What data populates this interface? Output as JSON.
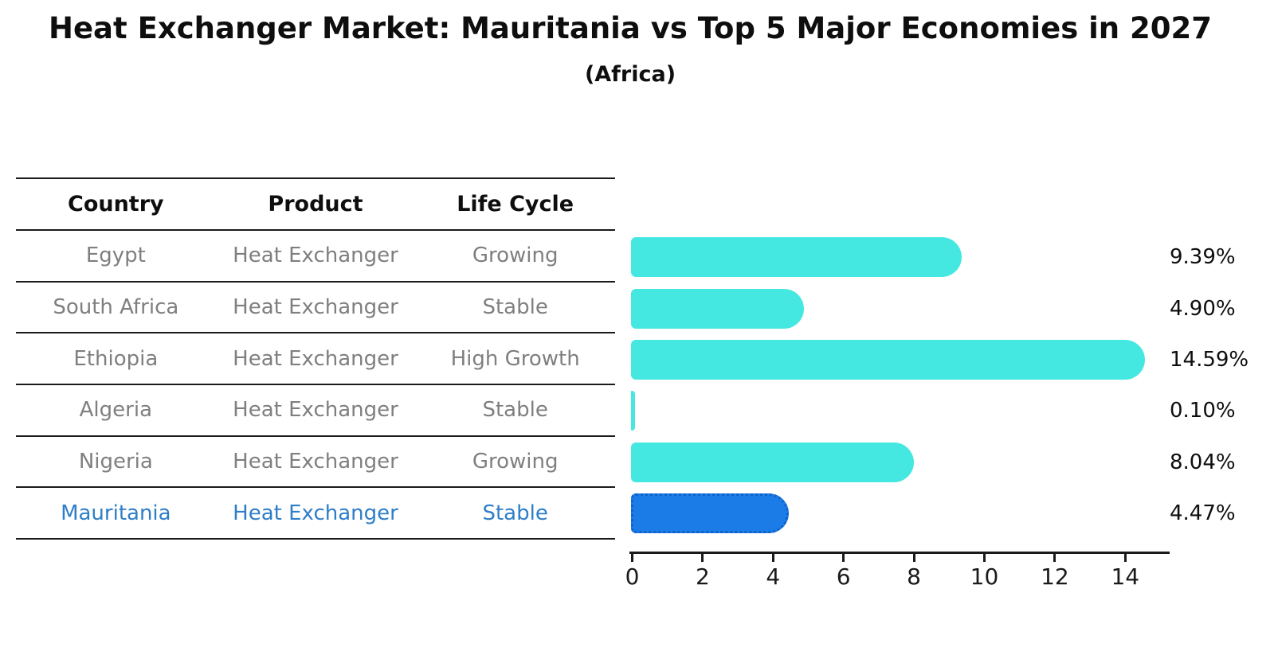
{
  "header": {
    "title": "Heat Exchanger Market: Mauritania vs Top 5 Major Economies in 2027",
    "subtitle": "(Africa)"
  },
  "table": {
    "columns": [
      "Country",
      "Product",
      "Life Cycle"
    ],
    "rows": [
      {
        "country": "Egypt",
        "product": "Heat Exchanger",
        "life_cycle": "Growing",
        "highlight": false
      },
      {
        "country": "South Africa",
        "product": "Heat Exchanger",
        "life_cycle": "Stable",
        "highlight": false
      },
      {
        "country": "Ethiopia",
        "product": "Heat Exchanger",
        "life_cycle": "High Growth",
        "highlight": false
      },
      {
        "country": "Algeria",
        "product": "Heat Exchanger",
        "life_cycle": "Stable",
        "highlight": false
      },
      {
        "country": "Nigeria",
        "product": "Heat Exchanger",
        "life_cycle": "Growing",
        "highlight": false
      },
      {
        "country": "Mauritania",
        "product": "Heat Exchanger",
        "life_cycle": "Stable",
        "highlight": true
      }
    ]
  },
  "chart_data": {
    "type": "bar",
    "orientation": "horizontal",
    "title": "Heat Exchanger Market: Mauritania vs Top 5 Major Economies in 2027",
    "subtitle": "(Africa)",
    "categories": [
      "Egypt",
      "South Africa",
      "Ethiopia",
      "Algeria",
      "Nigeria",
      "Mauritania"
    ],
    "values": [
      9.39,
      4.9,
      14.59,
      0.1,
      8.04,
      4.47
    ],
    "value_labels": [
      "9.39%",
      "4.90%",
      "14.59%",
      "0.10%",
      "8.04%",
      "4.47%"
    ],
    "x_ticks": [
      0,
      2,
      4,
      6,
      8,
      10,
      12,
      14
    ],
    "xlim": [
      0,
      15.3
    ],
    "grid": false,
    "legend": "none",
    "highlight_index": 5
  },
  "colors": {
    "bar": "#45e8e1",
    "highlight_bar": "#1b7ce8",
    "highlight_bar_edge": "#0e62c9",
    "table_text": "#7f7f7f",
    "highlight_text": "#2e7ec8",
    "line": "#1a1a1a",
    "label_text": "#0e0e0e"
  }
}
